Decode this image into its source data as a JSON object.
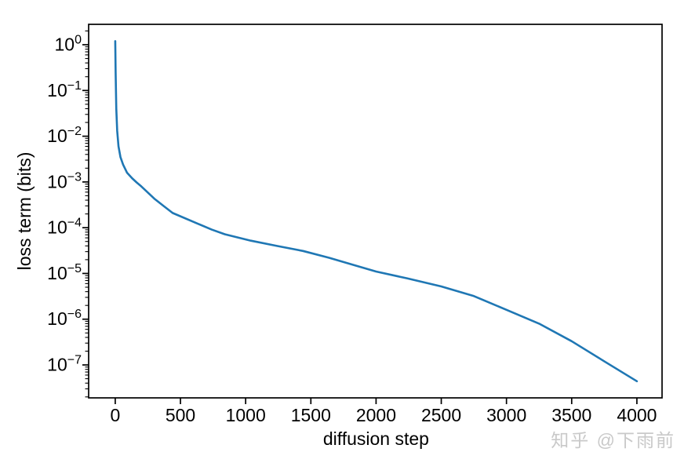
{
  "watermark": {
    "text": "知乎 @下雨前",
    "color": "#c9c9c9"
  },
  "colors": {
    "line": "#1f77b4",
    "axis": "#000000",
    "background": "#ffffff"
  },
  "chart_data": {
    "type": "line",
    "title": "",
    "xlabel": "diffusion step",
    "ylabel": "loss term (bits)",
    "y_scale": "log",
    "grid": false,
    "legend": null,
    "xlim": [
      -204,
      4193
    ],
    "ylim_log10": [
      -7.72,
      0.446
    ],
    "x_ticks": [
      {
        "value": 0,
        "label": "0"
      },
      {
        "value": 500,
        "label": "500"
      },
      {
        "value": 1000,
        "label": "1000"
      },
      {
        "value": 1500,
        "label": "1500"
      },
      {
        "value": 2000,
        "label": "2000"
      },
      {
        "value": 2500,
        "label": "2500"
      },
      {
        "value": 3000,
        "label": "3000"
      },
      {
        "value": 3500,
        "label": "3500"
      },
      {
        "value": 4000,
        "label": "4000"
      }
    ],
    "y_ticks": [
      {
        "exponent": 0,
        "base": "10",
        "sup": "0"
      },
      {
        "exponent": -1,
        "base": "10",
        "sup": "−1"
      },
      {
        "exponent": -2,
        "base": "10",
        "sup": "−2"
      },
      {
        "exponent": -3,
        "base": "10",
        "sup": "−3"
      },
      {
        "exponent": -4,
        "base": "10",
        "sup": "−4"
      },
      {
        "exponent": -5,
        "base": "10",
        "sup": "−5"
      },
      {
        "exponent": -6,
        "base": "10",
        "sup": "−6"
      },
      {
        "exponent": -7,
        "base": "10",
        "sup": "−7"
      }
    ],
    "series": [
      {
        "name": "loss term",
        "color": "#1f77b4",
        "points": [
          [
            0,
            1.2
          ],
          [
            3,
            0.25
          ],
          [
            8,
            0.04
          ],
          [
            15,
            0.013
          ],
          [
            25,
            0.006
          ],
          [
            40,
            0.0035
          ],
          [
            60,
            0.0024
          ],
          [
            90,
            0.0016
          ],
          [
            130,
            0.0012
          ],
          [
            165,
            0.00097
          ],
          [
            200,
            0.0008
          ],
          [
            300,
            0.00043
          ],
          [
            370,
            0.0003
          ],
          [
            440,
            0.00021
          ],
          [
            640,
            0.00012
          ],
          [
            740,
            9.1e-05
          ],
          [
            840,
            7.2e-05
          ],
          [
            1040,
            5.2e-05
          ],
          [
            1240,
            4e-05
          ],
          [
            1440,
            3.1e-05
          ],
          [
            1640,
            2.2e-05
          ],
          [
            1840,
            1.5e-05
          ],
          [
            2000,
            1.1e-05
          ],
          [
            2240,
            7.8e-06
          ],
          [
            2500,
            5.2e-06
          ],
          [
            2750,
            3.2e-06
          ],
          [
            3000,
            1.6e-06
          ],
          [
            3250,
            8e-07
          ],
          [
            3500,
            3.3e-07
          ],
          [
            3750,
            1.2e-07
          ],
          [
            4000,
            4.4e-08
          ]
        ]
      }
    ]
  }
}
